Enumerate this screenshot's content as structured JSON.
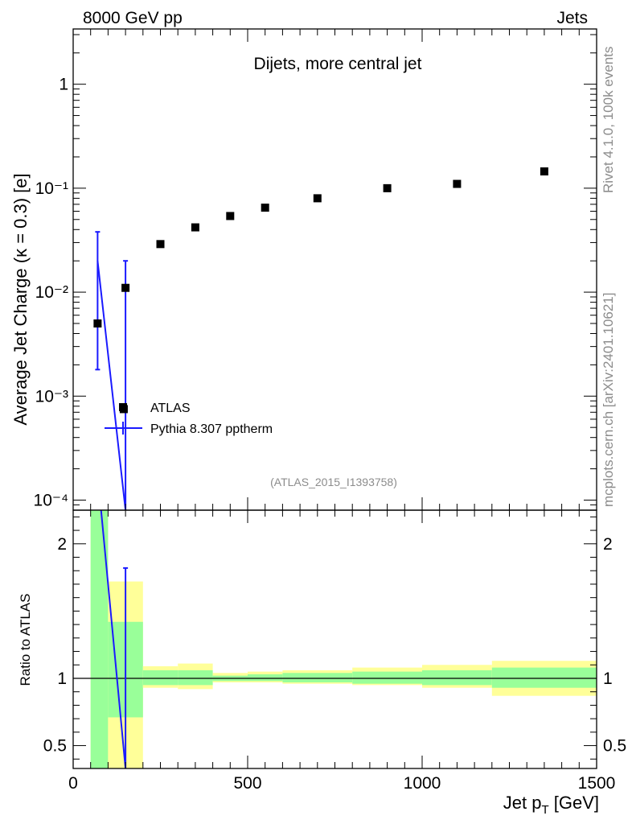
{
  "header": {
    "left": "8000 GeV pp",
    "right": "Jets"
  },
  "side": {
    "rivet": "Rivet 4.1.0,  100k events",
    "mcplots": "mcplots.cern.ch [arXiv:2401.10621]"
  },
  "chart_data": [
    {
      "type": "scatter",
      "title": "Dijets, more central jet",
      "ylabel": "Average Jet Charge (κ = 0.3) [e]",
      "xlabel": "Jet p_T [GeV]",
      "yscale": "log",
      "xlim": [
        0,
        1500
      ],
      "ylim": [
        8e-05,
        3.4
      ],
      "watermark": "(ATLAS_2015_I1393758)",
      "ytick_labels": [
        {
          "v": 1,
          "label": "1"
        },
        {
          "v": 0.1,
          "label": "10⁻¹"
        },
        {
          "v": 0.01,
          "label": "10⁻²"
        },
        {
          "v": 0.001,
          "label": "10⁻³"
        },
        {
          "v": 0.0001,
          "label": "10⁻⁴"
        }
      ],
      "series": [
        {
          "name": "ATLAS",
          "x": [
            70,
            145,
            150,
            250,
            350,
            450,
            550,
            700,
            900,
            1100,
            1350
          ],
          "y": [
            0.005,
            0.00075,
            0.011,
            0.029,
            0.042,
            0.054,
            0.065,
            0.08,
            0.1,
            0.11,
            0.145
          ]
        },
        {
          "name": "Pythia 8.307 pptherm",
          "x": [
            70,
            150
          ],
          "y": [
            0.02,
            8e-05
          ],
          "yerr_lo": [
            0.0018,
            null
          ],
          "yerr_hi": [
            0.038,
            0.02
          ]
        }
      ]
    },
    {
      "type": "area",
      "ylabel": "Ratio to ATLAS",
      "xlim": [
        0,
        1500
      ],
      "ylim": [
        0.33,
        2.25
      ],
      "yticks": [
        0.5,
        1,
        2
      ],
      "ytick_labels": [
        "0.5",
        "1",
        "2"
      ],
      "xticks": [
        0,
        500,
        1000,
        1500
      ],
      "xtick_labels": [
        "0",
        "500",
        "1000",
        "1500"
      ],
      "bands": [
        {
          "x0": 50,
          "x1": 100,
          "yellow": [
            0.33,
            2.25
          ],
          "green": [
            0.33,
            2.25
          ]
        },
        {
          "x0": 100,
          "x1": 200,
          "yellow": [
            0.33,
            1.72
          ],
          "green": [
            0.71,
            1.42
          ]
        },
        {
          "x0": 200,
          "x1": 300,
          "yellow": [
            0.93,
            1.09
          ],
          "green": [
            0.95,
            1.06
          ]
        },
        {
          "x0": 300,
          "x1": 400,
          "yellow": [
            0.92,
            1.11
          ],
          "green": [
            0.95,
            1.06
          ]
        },
        {
          "x0": 400,
          "x1": 500,
          "yellow": [
            0.97,
            1.04
          ],
          "green": [
            0.98,
            1.02
          ]
        },
        {
          "x0": 500,
          "x1": 600,
          "yellow": [
            0.97,
            1.05
          ],
          "green": [
            0.98,
            1.03
          ]
        },
        {
          "x0": 600,
          "x1": 800,
          "yellow": [
            0.96,
            1.06
          ],
          "green": [
            0.97,
            1.04
          ]
        },
        {
          "x0": 800,
          "x1": 1000,
          "yellow": [
            0.95,
            1.08
          ],
          "green": [
            0.96,
            1.05
          ]
        },
        {
          "x0": 1000,
          "x1": 1200,
          "yellow": [
            0.93,
            1.1
          ],
          "green": [
            0.95,
            1.06
          ]
        },
        {
          "x0": 1200,
          "x1": 1500,
          "yellow": [
            0.87,
            1.13
          ],
          "green": [
            0.93,
            1.08
          ]
        }
      ],
      "pythia_ratio": {
        "x": [
          80,
          150
        ],
        "y": [
          2.3,
          0.33
        ],
        "err_x": 150,
        "err_hi": 1.82
      }
    }
  ]
}
